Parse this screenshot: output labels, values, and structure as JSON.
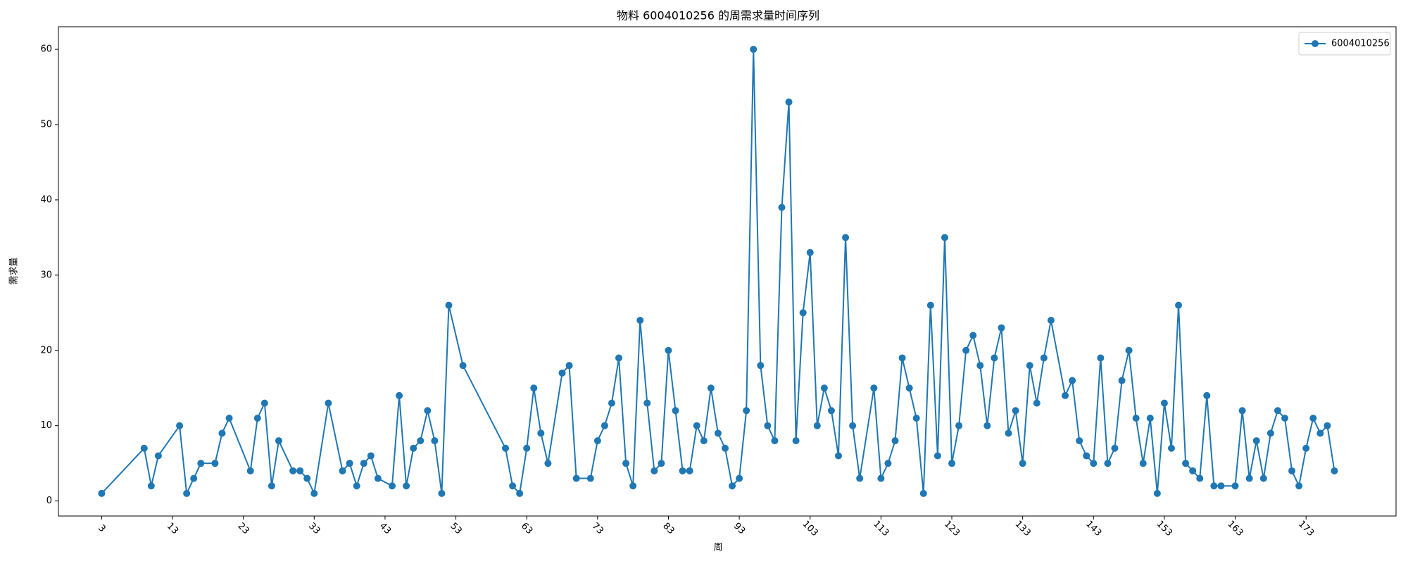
{
  "chart_data": {
    "type": "line",
    "title": "物料 6004010256 的周需求量时间序列",
    "x_label": "周",
    "y_label": "需求量",
    "x": [
      3,
      9,
      10,
      11,
      14,
      15,
      16,
      17,
      19,
      20,
      21,
      24,
      25,
      26,
      27,
      28,
      30,
      31,
      32,
      33,
      35,
      37,
      38,
      39,
      40,
      41,
      42,
      44,
      45,
      46,
      47,
      48,
      49,
      50,
      51,
      52,
      54,
      60,
      61,
      62,
      63,
      64,
      65,
      66,
      68,
      69,
      70,
      72,
      73,
      74,
      75,
      76,
      77,
      78,
      79,
      80,
      81,
      82,
      83,
      84,
      85,
      86,
      87,
      88,
      89,
      90,
      91,
      92,
      93,
      94,
      95,
      96,
      97,
      98,
      99,
      100,
      101,
      102,
      103,
      104,
      105,
      106,
      107,
      108,
      109,
      110,
      112,
      113,
      114,
      115,
      116,
      117,
      118,
      119,
      120,
      121,
      122,
      123,
      124,
      125,
      126,
      127,
      128,
      129,
      130,
      131,
      132,
      133,
      134,
      135,
      136,
      137,
      139,
      140,
      141,
      142,
      143,
      144,
      145,
      146,
      147,
      148,
      149,
      150,
      151,
      152,
      153,
      154,
      155,
      156,
      157,
      158,
      159,
      160,
      161,
      163,
      164,
      165,
      166,
      167,
      168,
      169,
      170,
      171,
      172,
      173,
      174,
      175,
      176,
      177
    ],
    "series": [
      {
        "name": "6004010256",
        "color": "#1f77b4",
        "values": [
          1,
          7,
          2,
          6,
          10,
          1,
          3,
          5,
          5,
          9,
          11,
          4,
          11,
          13,
          2,
          8,
          4,
          4,
          3,
          1,
          13,
          4,
          5,
          2,
          5,
          6,
          3,
          2,
          14,
          2,
          7,
          8,
          12,
          8,
          1,
          26,
          18,
          7,
          2,
          1,
          7,
          15,
          9,
          5,
          17,
          18,
          3,
          3,
          8,
          10,
          13,
          19,
          5,
          2,
          24,
          13,
          4,
          5,
          20,
          12,
          4,
          4,
          10,
          8,
          15,
          9,
          7,
          2,
          3,
          12,
          60,
          18,
          10,
          8,
          39,
          53,
          8,
          25,
          33,
          10,
          15,
          12,
          6,
          35,
          10,
          3,
          15,
          3,
          5,
          8,
          19,
          15,
          11,
          1,
          26,
          6,
          35,
          5,
          10,
          20,
          22,
          18,
          10,
          19,
          23,
          9,
          12,
          5,
          18,
          13,
          19,
          24,
          14,
          16,
          8,
          6,
          5,
          19,
          5,
          7,
          16,
          20,
          11,
          5,
          11,
          1,
          13,
          7,
          26,
          5,
          4,
          3,
          14,
          2,
          2,
          2,
          12,
          3,
          8,
          3,
          9,
          12,
          11,
          4,
          2,
          7,
          11,
          9,
          10,
          4
        ]
      }
    ],
    "xlim": [
      -3.1,
      185.7
    ],
    "ylim": [
      -2,
      63
    ],
    "xticks": [
      3,
      13,
      23,
      33,
      43,
      53,
      63,
      73,
      83,
      93,
      103,
      113,
      123,
      133,
      143,
      153,
      163,
      173
    ],
    "yticks": [
      0,
      10,
      20,
      30,
      40,
      50,
      60
    ],
    "legend": "upper right",
    "grid": false
  }
}
